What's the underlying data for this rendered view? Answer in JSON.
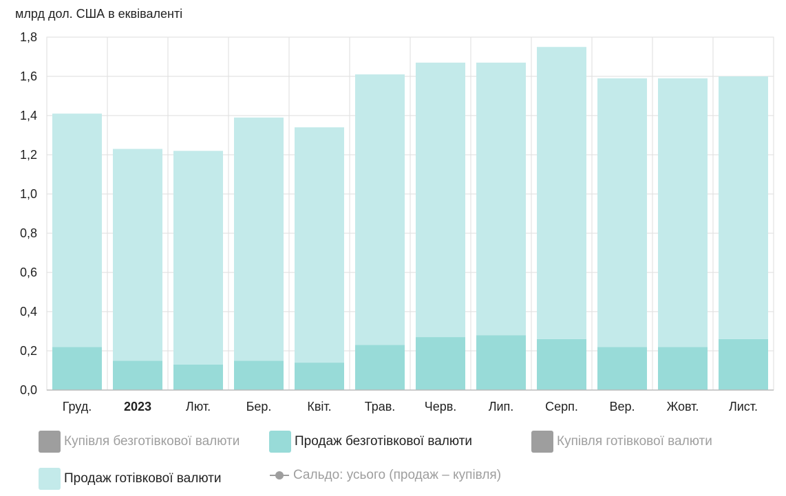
{
  "chart_data": {
    "type": "bar",
    "stacked": true,
    "ylabel": "млрд дол. США в еквіваленті",
    "ylim": [
      0,
      1.8
    ],
    "yticks": [
      "0,0",
      "0,2",
      "0,4",
      "0,6",
      "0,8",
      "1,0",
      "1,2",
      "1,4",
      "1,6",
      "1,8"
    ],
    "categories": [
      "Груд.",
      "2023",
      "Лют.",
      "Бер.",
      "Квіт.",
      "Трав.",
      "Черв.",
      "Лип.",
      "Серп.",
      "Вер.",
      "Жовт.",
      "Лист."
    ],
    "bold_categories": [
      "2023"
    ],
    "grid": true,
    "legend_position": "bottom",
    "series": [
      {
        "name": "Продаж безготівкової валюти",
        "color": "#98dbd8",
        "values": [
          0.22,
          0.15,
          0.13,
          0.15,
          0.14,
          0.23,
          0.27,
          0.28,
          0.26,
          0.22,
          0.22,
          0.26
        ]
      },
      {
        "name": "Продаж готівкової валюти",
        "color": "#c3eaea",
        "values": [
          1.19,
          1.08,
          1.09,
          1.24,
          1.2,
          1.38,
          1.4,
          1.39,
          1.49,
          1.37,
          1.37,
          1.34
        ]
      }
    ]
  },
  "legend": {
    "items": [
      {
        "label": "Купівля безготівкової валюти",
        "color": "#9e9e9e",
        "marker": "square",
        "active": false
      },
      {
        "label": "Продаж безготівкової валюти",
        "color": "#98dbd8",
        "marker": "square",
        "active": true
      },
      {
        "label": "Купівля готівкової валюти",
        "color": "#9e9e9e",
        "marker": "square",
        "active": false
      },
      {
        "label": "Продаж готівкової валюти",
        "color": "#c3eaea",
        "marker": "square",
        "active": true
      },
      {
        "label": "Сальдо: усього (продаж – купівля)",
        "color": "#9e9e9e",
        "marker": "line",
        "active": false
      }
    ]
  }
}
